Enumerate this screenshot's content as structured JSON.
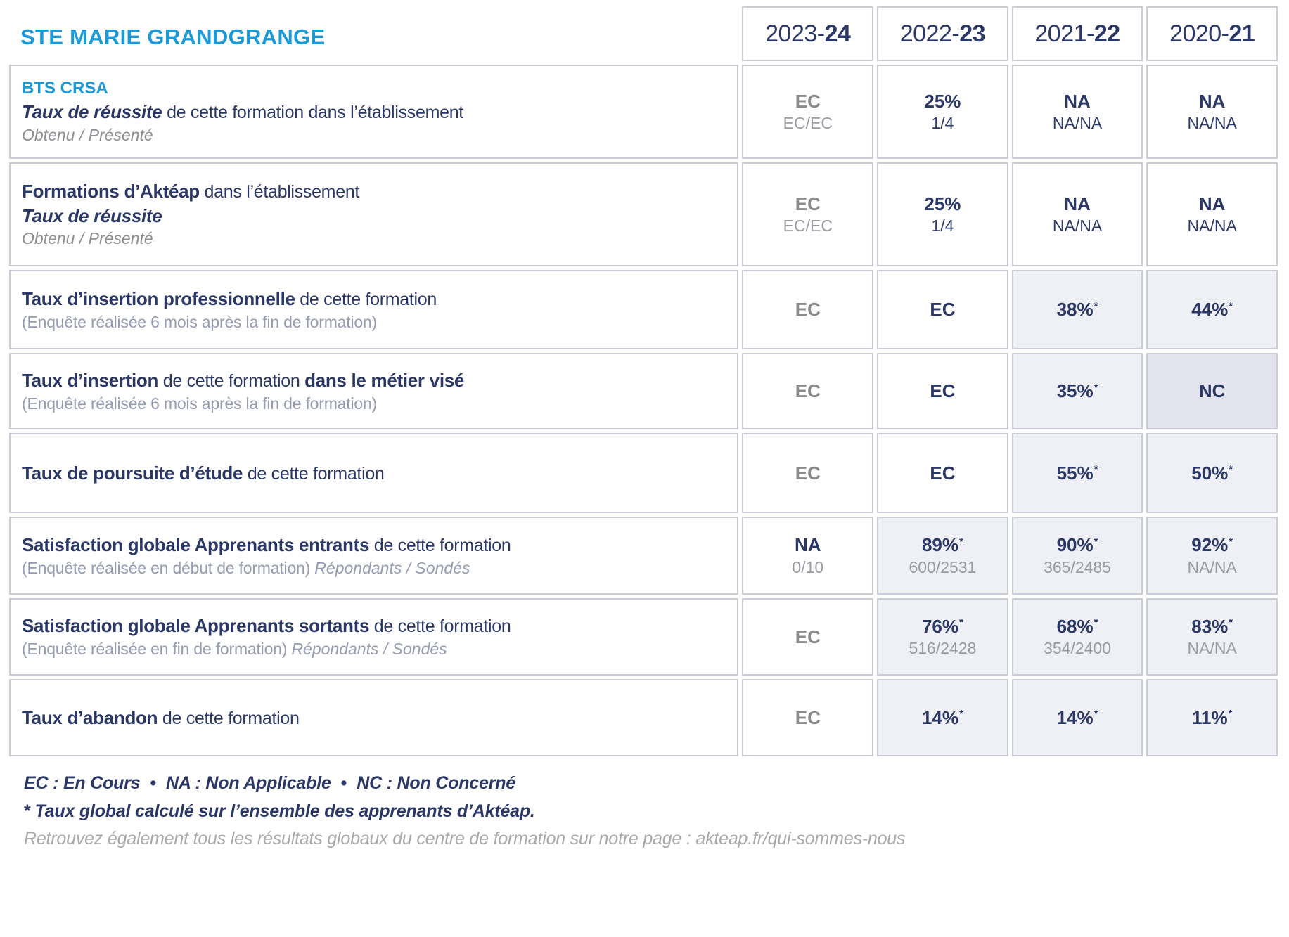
{
  "colors": {
    "accent_blue": "#1b9ad7",
    "navy": "#2b3765",
    "gray_value": "#8b8b8b",
    "sub_gray": "#9b9ba3",
    "slate_note": "#979bb1",
    "cell_shade": "#eef0f5",
    "cell_shade_dark": "#e4e4ef",
    "border": "#cbcdd6"
  },
  "title": "STE MARIE GRANDGRANGE",
  "years": [
    {
      "prefix": "2023-",
      "suffix": "24"
    },
    {
      "prefix": "2022-",
      "suffix": "23"
    },
    {
      "prefix": "2021-",
      "suffix": "22"
    },
    {
      "prefix": "2020-",
      "suffix": "21"
    }
  ],
  "rows": [
    {
      "label_lines": [
        {
          "parts": [
            {
              "text": "BTS CRSA",
              "style": "heading"
            }
          ]
        },
        {
          "parts": [
            {
              "text": "Taux de réussite",
              "style": "bi"
            },
            {
              "text": " de cette formation dans l’établissement",
              "style": "r"
            }
          ]
        },
        {
          "parts": [
            {
              "text": "Obtenu / Présenté",
              "style": "obt"
            }
          ]
        }
      ],
      "cells": [
        {
          "v": "EC",
          "vc": "gray",
          "sub": "EC/EC",
          "sc": "gray",
          "bg": "plain",
          "star": false
        },
        {
          "v": "25%",
          "vc": "navy",
          "sub": "1/4",
          "sc": "navy",
          "bg": "plain",
          "star": false
        },
        {
          "v": "NA",
          "vc": "navy",
          "sub": "NA/NA",
          "sc": "navy",
          "bg": "plain",
          "star": false
        },
        {
          "v": "NA",
          "vc": "navy",
          "sub": "NA/NA",
          "sc": "navy",
          "bg": "plain",
          "star": false
        }
      ]
    },
    {
      "label_lines": [
        {
          "parts": [
            {
              "text": "Formations d’Aktéap",
              "style": "b"
            },
            {
              "text": " dans l’établissement",
              "style": "r"
            }
          ]
        },
        {
          "parts": [
            {
              "text": "Taux de réussite",
              "style": "bi"
            }
          ]
        },
        {
          "parts": [
            {
              "text": "Obtenu / Présenté",
              "style": "obt"
            }
          ]
        }
      ],
      "cells": [
        {
          "v": "EC",
          "vc": "gray",
          "sub": "EC/EC",
          "sc": "gray",
          "bg": "plain",
          "star": false
        },
        {
          "v": "25%",
          "vc": "navy",
          "sub": "1/4",
          "sc": "navy",
          "bg": "plain",
          "star": false
        },
        {
          "v": "NA",
          "vc": "navy",
          "sub": "NA/NA",
          "sc": "navy",
          "bg": "plain",
          "star": false
        },
        {
          "v": "NA",
          "vc": "navy",
          "sub": "NA/NA",
          "sc": "navy",
          "bg": "plain",
          "star": false
        }
      ]
    },
    {
      "label_lines": [
        {
          "parts": [
            {
              "text": "Taux d’insertion professionnelle",
              "style": "b"
            },
            {
              "text": " de cette formation",
              "style": "r"
            }
          ]
        },
        {
          "parts": [
            {
              "text": "(Enquête réalisée 6 mois après la fin de formation)",
              "style": "sub"
            }
          ]
        }
      ],
      "cells": [
        {
          "v": "EC",
          "vc": "gray",
          "bg": "plain",
          "star": false
        },
        {
          "v": "EC",
          "vc": "navy",
          "bg": "plain",
          "star": false
        },
        {
          "v": "38%",
          "vc": "navy",
          "bg": "shade",
          "star": true
        },
        {
          "v": "44%",
          "vc": "navy",
          "bg": "shade",
          "star": true
        }
      ]
    },
    {
      "label_lines": [
        {
          "parts": [
            {
              "text": "Taux d’insertion",
              "style": "b"
            },
            {
              "text": " de cette formation ",
              "style": "r"
            },
            {
              "text": "dans le métier visé",
              "style": "b"
            }
          ]
        },
        {
          "parts": [
            {
              "text": "(Enquête réalisée 6 mois après la fin de formation)",
              "style": "sub"
            }
          ]
        }
      ],
      "cells": [
        {
          "v": "EC",
          "vc": "gray",
          "bg": "plain",
          "star": false
        },
        {
          "v": "EC",
          "vc": "navy",
          "bg": "plain",
          "star": false
        },
        {
          "v": "35%",
          "vc": "navy",
          "bg": "shade",
          "star": true
        },
        {
          "v": "NC",
          "vc": "navy",
          "bg": "shade2",
          "star": false
        }
      ]
    },
    {
      "label_lines": [
        {
          "parts": [
            {
              "text": "Taux de poursuite d’étude",
              "style": "b"
            },
            {
              "text": " de cette formation",
              "style": "r"
            }
          ]
        }
      ],
      "cells": [
        {
          "v": "EC",
          "vc": "gray",
          "bg": "plain",
          "star": false
        },
        {
          "v": "EC",
          "vc": "navy",
          "bg": "plain",
          "star": false
        },
        {
          "v": "55%",
          "vc": "navy",
          "bg": "shade",
          "star": true
        },
        {
          "v": "50%",
          "vc": "navy",
          "bg": "shade",
          "star": true
        }
      ]
    },
    {
      "label_lines": [
        {
          "parts": [
            {
              "text": "Satisfaction globale Apprenants entrants",
              "style": "b"
            },
            {
              "text": " de cette formation",
              "style": "r"
            }
          ]
        },
        {
          "parts": [
            {
              "text": "(Enquête réalisée en début de formation) ",
              "style": "sub"
            },
            {
              "text": "Répondants / Sondés",
              "style": "sub-i"
            }
          ]
        }
      ],
      "cells": [
        {
          "v": "NA",
          "vc": "navy",
          "sub": "0/10",
          "sc": "gray",
          "bg": "plain",
          "star": false
        },
        {
          "v": "89%",
          "vc": "navy",
          "sub": "600/2531",
          "sc": "gray",
          "bg": "shade",
          "star": true
        },
        {
          "v": "90%",
          "vc": "navy",
          "sub": "365/2485",
          "sc": "gray",
          "bg": "shade",
          "star": true
        },
        {
          "v": "92%",
          "vc": "navy",
          "sub": "NA/NA",
          "sc": "gray",
          "bg": "shade",
          "star": true
        }
      ]
    },
    {
      "label_lines": [
        {
          "parts": [
            {
              "text": "Satisfaction globale Apprenants sortants",
              "style": "b"
            },
            {
              "text": " de cette formation",
              "style": "r"
            }
          ]
        },
        {
          "parts": [
            {
              "text": "(Enquête réalisée en fin de formation) ",
              "style": "sub"
            },
            {
              "text": "Répondants / Sondés",
              "style": "sub-i"
            }
          ]
        }
      ],
      "cells": [
        {
          "v": "EC",
          "vc": "gray",
          "bg": "plain",
          "star": false
        },
        {
          "v": "76%",
          "vc": "navy",
          "sub": "516/2428",
          "sc": "gray",
          "bg": "shade",
          "star": true
        },
        {
          "v": "68%",
          "vc": "navy",
          "sub": "354/2400",
          "sc": "gray",
          "bg": "shade",
          "star": true
        },
        {
          "v": "83%",
          "vc": "navy",
          "sub": "NA/NA",
          "sc": "gray",
          "bg": "shade",
          "star": true
        }
      ]
    },
    {
      "label_lines": [
        {
          "parts": [
            {
              "text": "Taux d’abandon",
              "style": "b"
            },
            {
              "text": " de cette formation",
              "style": "r"
            }
          ]
        }
      ],
      "cells": [
        {
          "v": "EC",
          "vc": "gray",
          "bg": "plain",
          "star": false
        },
        {
          "v": "14%",
          "vc": "navy",
          "bg": "shade",
          "star": true
        },
        {
          "v": "14%",
          "vc": "navy",
          "bg": "shade",
          "star": true
        },
        {
          "v": "11%",
          "vc": "navy",
          "bg": "shade",
          "star": true
        }
      ]
    }
  ],
  "footer": {
    "legend_items": [
      "EC : En Cours",
      "NA : Non Applicable",
      "NC : Non Concerné"
    ],
    "legend_bullet": "•",
    "note_star": "*",
    "note_text": "Taux global calculé sur l’ensemble des apprenants d’Aktéap.",
    "info": "Retrouvez également tous les résultats globaux du centre de formation sur notre page : akteap.fr/qui-sommes-nous"
  }
}
